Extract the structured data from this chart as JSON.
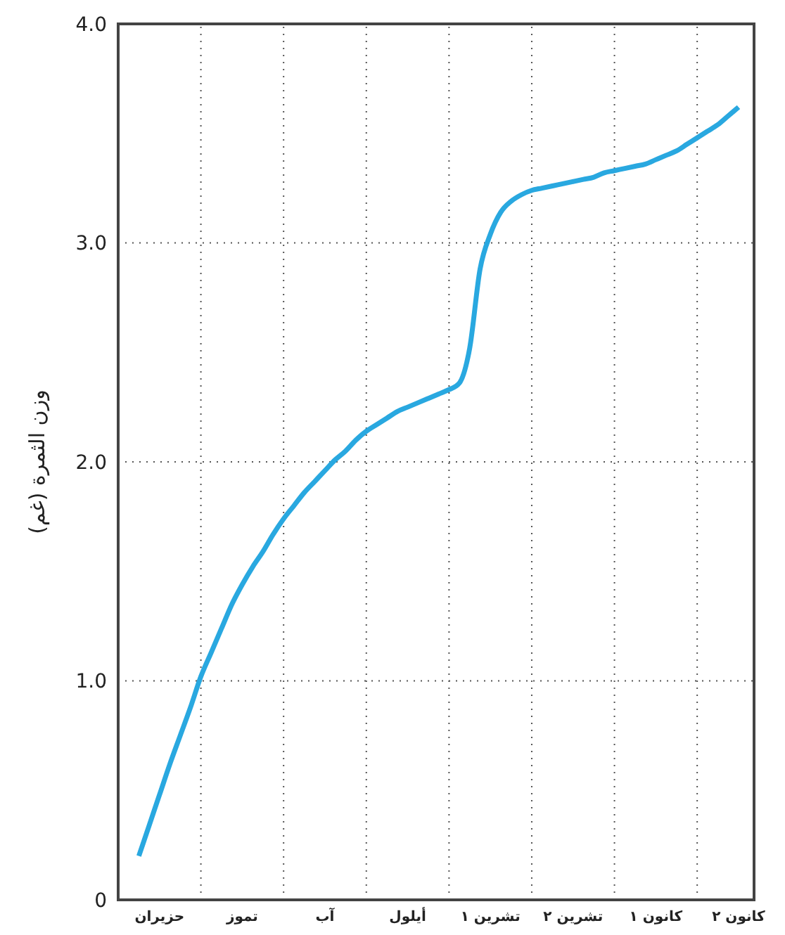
{
  "chart_data": {
    "type": "line",
    "ylabel": "وزن الثمرة (غم)",
    "categories": [
      null,
      null,
      "حزيران",
      null,
      null,
      null,
      null,
      null,
      null,
      null,
      "تموز",
      null,
      null,
      null,
      null,
      null,
      null,
      null,
      "آب",
      null,
      null,
      null,
      null,
      null,
      null,
      null,
      "أيلول",
      null,
      null,
      null,
      null,
      null,
      null,
      null,
      "تشرين ١",
      null,
      null,
      null,
      null,
      null,
      null,
      null,
      "تشرين ٢",
      null,
      null,
      null,
      null,
      null,
      null,
      null,
      "كانون ١",
      null,
      null,
      null,
      null,
      null,
      null,
      null,
      "كانون ٢"
    ],
    "series": [
      {
        "color": "#29a8e0",
        "values": [
          0.2,
          0.34,
          0.48,
          0.62,
          0.75,
          0.88,
          1.02,
          1.13,
          1.24,
          1.35,
          1.44,
          1.52,
          1.59,
          1.67,
          1.74,
          1.8,
          1.86,
          1.91,
          1.96,
          2.01,
          2.05,
          2.1,
          2.14,
          2.17,
          2.2,
          2.23,
          2.25,
          2.27,
          2.29,
          2.31,
          2.33,
          2.36,
          2.52,
          2.88,
          3.04,
          3.14,
          3.19,
          3.22,
          3.24,
          3.25,
          3.26,
          3.27,
          3.28,
          3.29,
          3.3,
          3.32,
          3.33,
          3.34,
          3.35,
          3.36,
          3.38,
          3.4,
          3.42,
          3.45,
          3.48,
          3.51,
          3.54,
          3.58,
          3.62
        ]
      }
    ],
    "ylim": [
      0,
      4
    ],
    "yticks": [
      0,
      {
        "value": 1,
        "label": "1.0"
      },
      {
        "value": 2,
        "label": "2.0"
      },
      {
        "value": 3,
        "label": "3.0"
      },
      {
        "value": 4,
        "label": "4.0"
      }
    ],
    "grid": true,
    "marker": "none",
    "line_style": "solid"
  }
}
